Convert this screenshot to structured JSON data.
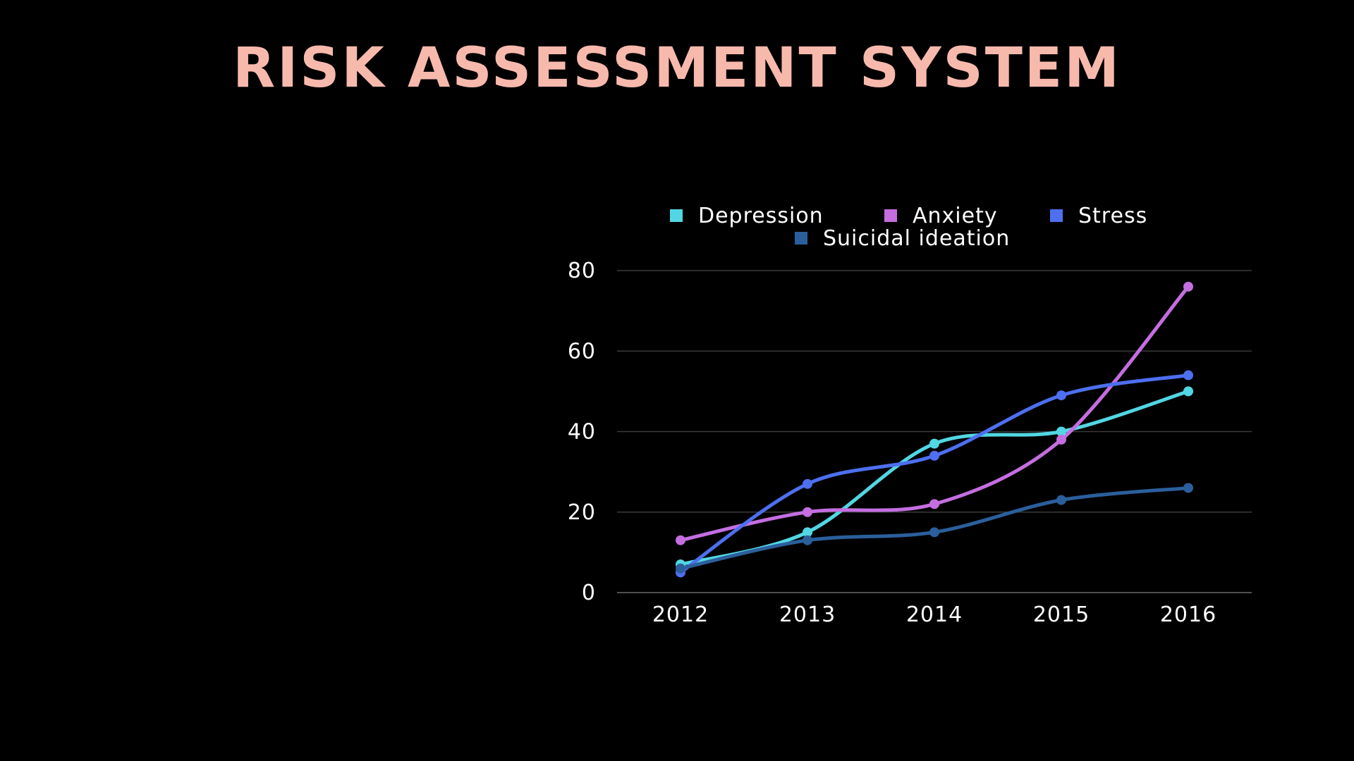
{
  "slide": {
    "title": "RISK ASSESSMENT SYSTEM"
  },
  "colors": {
    "background": "#000000",
    "title": "#f8b9ad",
    "grid": "#3a3a3a",
    "text": "#ffffff"
  },
  "chart_data": {
    "type": "line",
    "title": "",
    "xlabel": "",
    "ylabel": "",
    "categories": [
      "2012",
      "2013",
      "2014",
      "2015",
      "2016"
    ],
    "ylim": [
      0,
      80
    ],
    "yticks": [
      0,
      20,
      40,
      60,
      80
    ],
    "grid": true,
    "smooth": true,
    "legend_position": "top",
    "series": [
      {
        "name": "Depression",
        "color": "#52d6e3",
        "values": [
          7,
          15,
          37,
          40,
          50
        ]
      },
      {
        "name": "Anxiety",
        "color": "#c46ee0",
        "values": [
          13,
          20,
          22,
          38,
          76
        ]
      },
      {
        "name": "Stress",
        "color": "#4d6ff0",
        "values": [
          5,
          27,
          34,
          49,
          54
        ]
      },
      {
        "name": "Suicidal ideation",
        "color": "#2b5f9c",
        "values": [
          6,
          13,
          15,
          23,
          26
        ]
      }
    ]
  }
}
